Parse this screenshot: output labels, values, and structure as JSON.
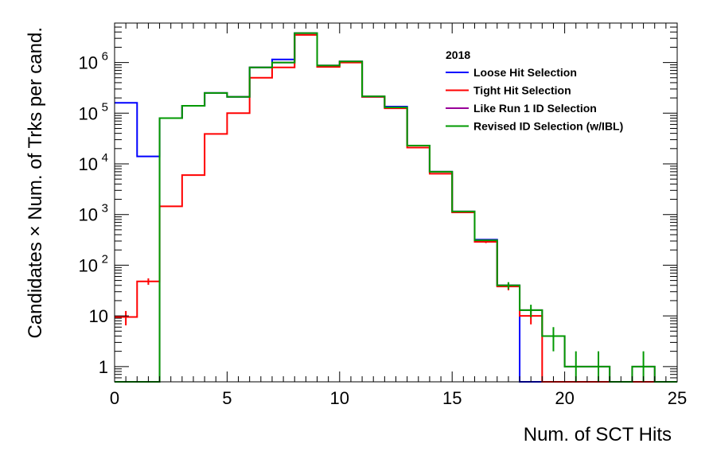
{
  "chart_data": {
    "type": "line",
    "title": "",
    "xlabel": "Num. of SCT Hits",
    "ylabel": "Candidates × Num. of Trks per cand.",
    "xlim": [
      0,
      25
    ],
    "ylim": [
      0.5,
      6000000
    ],
    "y_scale": "log",
    "x_ticks": [
      0,
      5,
      10,
      15,
      20,
      25
    ],
    "y_ticks": [
      {
        "value": 1,
        "base": "1",
        "exp": ""
      },
      {
        "value": 10,
        "base": "10",
        "exp": ""
      },
      {
        "value": 100,
        "base": "10",
        "exp": "2"
      },
      {
        "value": 1000,
        "base": "10",
        "exp": "3"
      },
      {
        "value": 10000,
        "base": "10",
        "exp": "4"
      },
      {
        "value": 100000,
        "base": "10",
        "exp": "5"
      },
      {
        "value": 1000000,
        "base": "10",
        "exp": "6"
      }
    ],
    "grid": false,
    "legend_position": "top-right",
    "legend_header": "2018",
    "bin_edges": [
      0,
      1,
      2,
      3,
      4,
      5,
      6,
      7,
      8,
      9,
      10,
      11,
      12,
      13,
      14,
      15,
      16,
      17,
      18,
      19,
      20,
      21,
      22,
      23,
      24,
      25
    ],
    "series": [
      {
        "name": "Loose Hit Selection",
        "color": "#0000ff",
        "values": [
          160000,
          14000,
          80000,
          140000,
          250000,
          210000,
          800000,
          1150000,
          3800000,
          870000,
          1050000,
          210000,
          135000,
          23000,
          7000,
          1150,
          320,
          40,
          0,
          0,
          0,
          0,
          0,
          0,
          0
        ],
        "errors": []
      },
      {
        "name": "Tight Hit Selection",
        "color": "#ff0000",
        "values": [
          9.5,
          48,
          1450,
          6000,
          39000,
          100000,
          500000,
          800000,
          3500000,
          820000,
          1000000,
          210000,
          125000,
          21000,
          6400,
          1100,
          290,
          38,
          10,
          0,
          0,
          0,
          0,
          0,
          0
        ],
        "errors": [
          3,
          7,
          0,
          0,
          0,
          0,
          0,
          0,
          0,
          0,
          0,
          0,
          0,
          0,
          0,
          0,
          17,
          6,
          3.2,
          0,
          0,
          0,
          0,
          0,
          0
        ]
      },
      {
        "name": "Like Run 1 ID Selection",
        "color": "#990099",
        "values": [
          0,
          0,
          80000,
          140000,
          250000,
          210000,
          800000,
          1000000,
          3800000,
          870000,
          1050000,
          215000,
          130000,
          23000,
          7000,
          1150,
          310,
          40,
          13,
          4,
          1,
          1,
          0,
          1,
          0
        ],
        "errors": []
      },
      {
        "name": "Revised ID Selection (w/IBL)",
        "color": "#009900",
        "values": [
          0,
          0,
          80000,
          140000,
          250000,
          210000,
          800000,
          1000000,
          3800000,
          870000,
          1050000,
          215000,
          130000,
          23000,
          7000,
          1150,
          310,
          40,
          13,
          4,
          1,
          1,
          0,
          1,
          0
        ],
        "errors": [
          0,
          0,
          0,
          0,
          0,
          0,
          0,
          0,
          0,
          0,
          0,
          0,
          0,
          0,
          0,
          0,
          0,
          6.3,
          3.6,
          2,
          1,
          1,
          0,
          1,
          0
        ]
      }
    ]
  }
}
